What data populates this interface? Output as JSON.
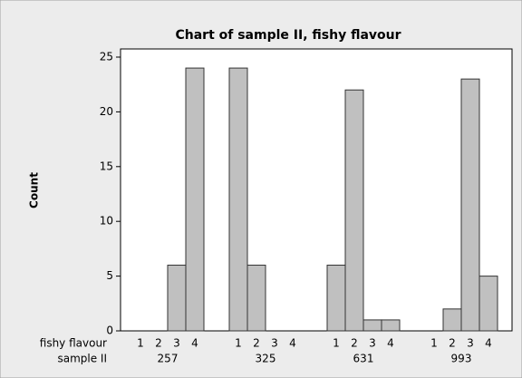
{
  "chart_data": {
    "type": "bar",
    "title": "Chart of sample II, fishy flavour",
    "ylabel": "Count",
    "xlabel_rows": [
      "fishy flavour",
      "sample II"
    ],
    "groups": [
      "257",
      "325",
      "631",
      "993"
    ],
    "categories": [
      "1",
      "2",
      "3",
      "4"
    ],
    "values": [
      [
        0,
        0,
        6,
        24
      ],
      [
        24,
        6,
        0,
        0
      ],
      [
        6,
        22,
        1,
        1
      ],
      [
        0,
        2,
        23,
        5
      ]
    ],
    "color": "#c0c0c0",
    "ylim": [
      0,
      25
    ],
    "yticks": [
      0,
      5,
      10,
      15,
      20,
      25
    ],
    "grid": false
  }
}
